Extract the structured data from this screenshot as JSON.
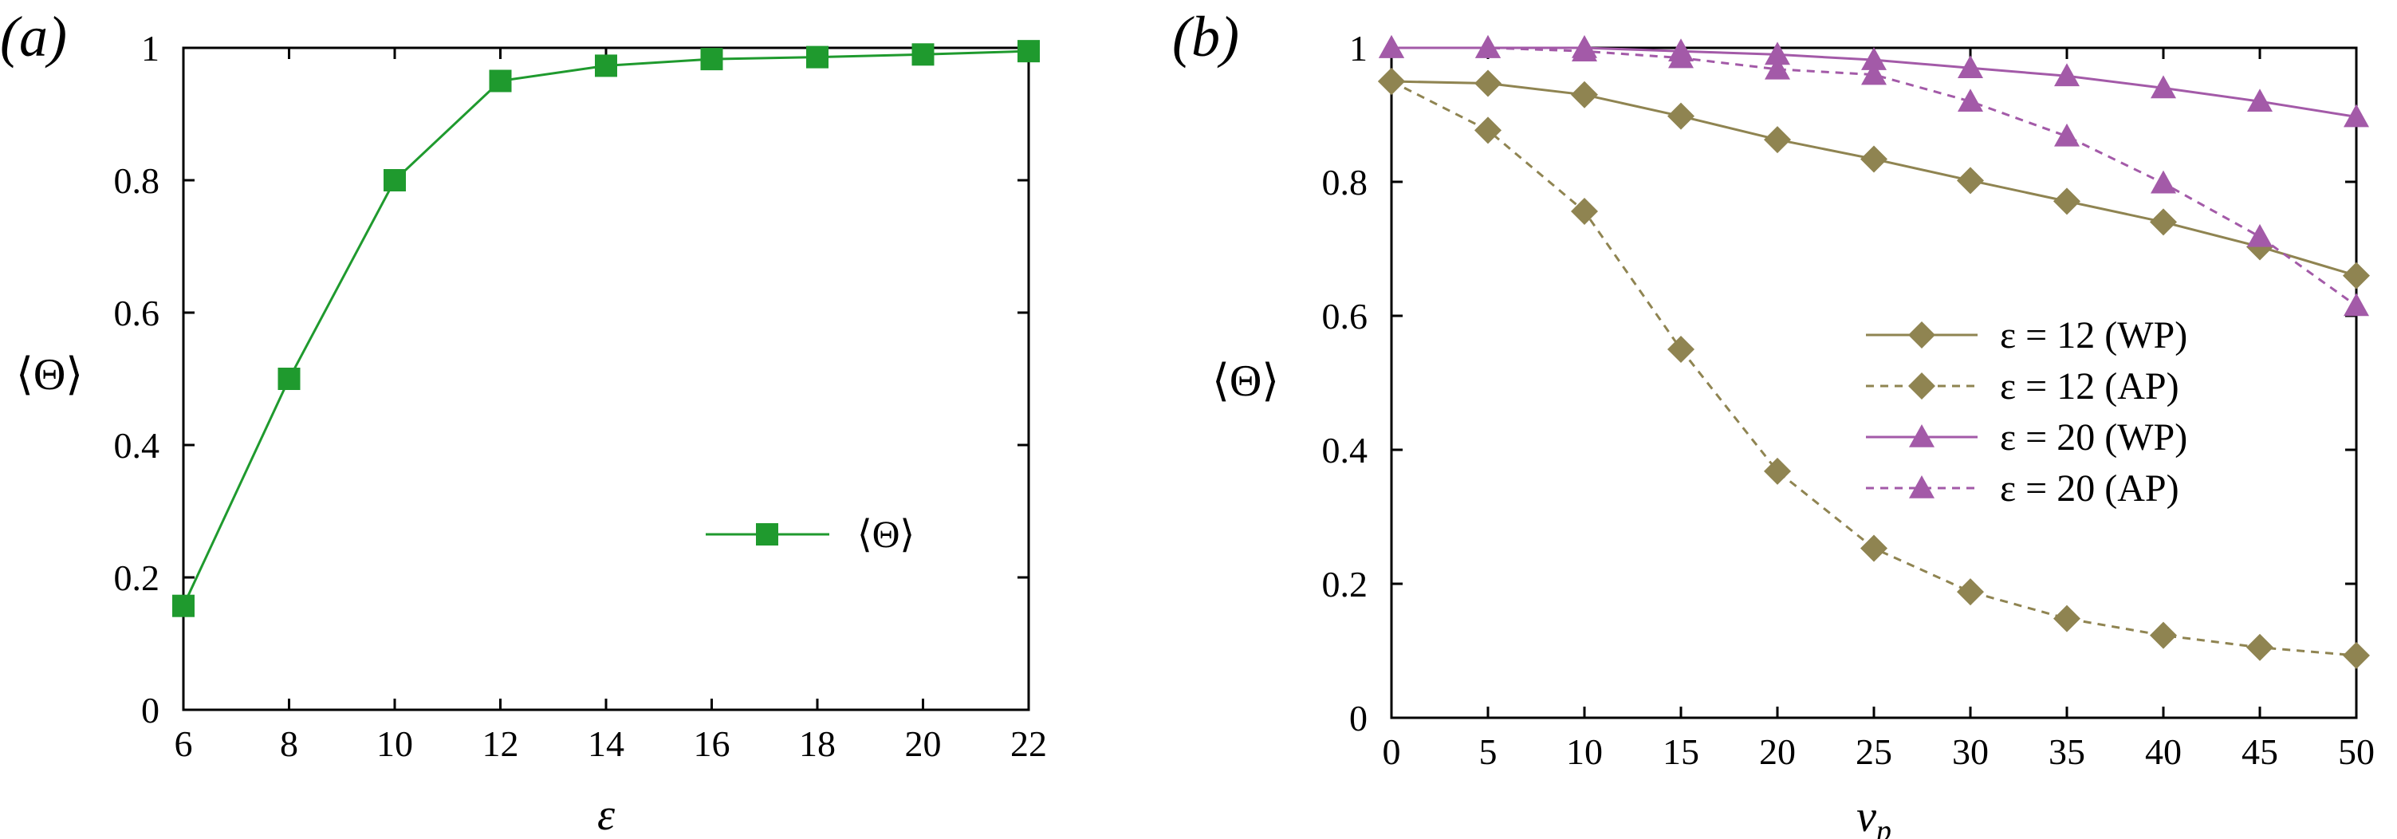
{
  "colors": {
    "green": "#1f9a2e",
    "olive": "#8f8451",
    "purple": "#a35aa8",
    "axis": "#000000"
  },
  "chart_data": [
    {
      "panel": "(a)",
      "type": "line",
      "xlabel": "ε",
      "ylabel": "⟨Θ⟩",
      "xlim": [
        6,
        22
      ],
      "ylim": [
        0,
        1
      ],
      "xticks": [
        "6",
        "8",
        "10",
        "12",
        "14",
        "16",
        "18",
        "20",
        "22"
      ],
      "yticks": [
        "0",
        "0.2",
        "0.4",
        "0.6",
        "0.8",
        "1"
      ],
      "legend_position": "center-right",
      "series": [
        {
          "name": "⟨Θ⟩",
          "marker": "square",
          "line": "solid",
          "color": "#1f9a2e",
          "x": [
            6,
            8,
            10,
            12,
            14,
            16,
            18,
            20,
            22
          ],
          "y": [
            0.157,
            0.5,
            0.8,
            0.95,
            0.973,
            0.983,
            0.986,
            0.99,
            0.995
          ]
        }
      ]
    },
    {
      "panel": "(b)",
      "type": "line",
      "xlabel": "v_p",
      "ylabel": "⟨Θ⟩",
      "xlim": [
        0,
        50
      ],
      "ylim": [
        0,
        1
      ],
      "xticks": [
        "0",
        "5",
        "10",
        "15",
        "20",
        "25",
        "30",
        "35",
        "40",
        "45",
        "50"
      ],
      "yticks": [
        "0",
        "0.2",
        "0.4",
        "0.6",
        "0.8",
        "1"
      ],
      "legend_position": "center-right",
      "series": [
        {
          "name": "ε = 12 (WP)",
          "marker": "diamond",
          "line": "solid",
          "color": "#8f8451",
          "x": [
            0,
            5,
            10,
            15,
            20,
            25,
            30,
            35,
            40,
            45,
            50
          ],
          "y": [
            0.95,
            0.947,
            0.93,
            0.898,
            0.863,
            0.834,
            0.802,
            0.771,
            0.74,
            0.703,
            0.66
          ]
        },
        {
          "name": "ε = 12 (AP)",
          "marker": "diamond",
          "line": "dashed",
          "color": "#8f8451",
          "x": [
            0,
            5,
            10,
            15,
            20,
            25,
            30,
            35,
            40,
            45,
            50
          ],
          "y": [
            0.95,
            0.877,
            0.756,
            0.55,
            0.368,
            0.253,
            0.188,
            0.148,
            0.123,
            0.105,
            0.093
          ]
        },
        {
          "name": "ε = 20 (WP)",
          "marker": "triangle",
          "line": "solid",
          "color": "#a35aa8",
          "x": [
            0,
            5,
            10,
            15,
            20,
            25,
            30,
            35,
            40,
            45,
            50
          ],
          "y": [
            1.0,
            1.0,
            1.0,
            0.995,
            0.99,
            0.982,
            0.97,
            0.958,
            0.94,
            0.92,
            0.897
          ]
        },
        {
          "name": "ε = 20 (AP)",
          "marker": "triangle",
          "line": "dashed",
          "color": "#a35aa8",
          "x": [
            0,
            5,
            10,
            15,
            20,
            25,
            30,
            35,
            40,
            45,
            50
          ],
          "y": [
            1.0,
            1.0,
            0.995,
            0.985,
            0.968,
            0.96,
            0.92,
            0.868,
            0.798,
            0.718,
            0.615
          ]
        }
      ]
    }
  ]
}
